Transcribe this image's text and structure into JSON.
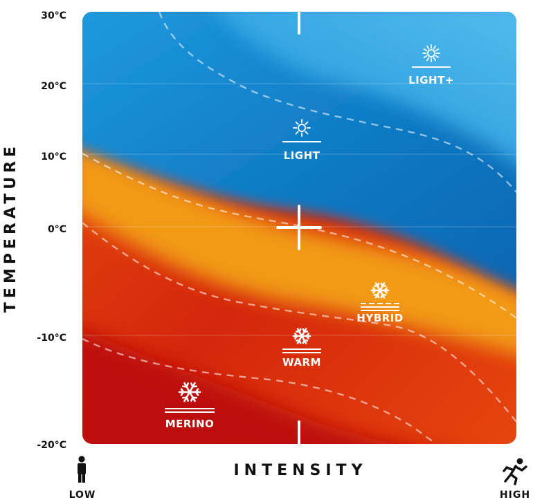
{
  "y_axis": {
    "title": "TEMPERATURE",
    "ticks": [
      {
        "label": "30°C",
        "value": 30
      },
      {
        "label": "20°C",
        "value": 20
      },
      {
        "label": "10°C",
        "value": 10
      },
      {
        "label": "0°C",
        "value": 0
      },
      {
        "label": "-10°C",
        "value": -10
      },
      {
        "label": "-20°C",
        "value": -20
      }
    ]
  },
  "x_axis": {
    "title": "INTENSITY",
    "low_label": "LOW",
    "high_label": "HIGH",
    "low_icon": "standing-person-icon",
    "high_icon": "running-person-icon"
  },
  "zones": [
    {
      "key": "merino",
      "label": "MERINO",
      "icon": "snowflake-icon"
    },
    {
      "key": "warm",
      "label": "WARM",
      "icon": "snowflake-icon"
    },
    {
      "key": "hybrid",
      "label": "HYBRID",
      "icon": "snowflake-icon"
    },
    {
      "key": "light",
      "label": "LIGHT",
      "icon": "sun-icon"
    },
    {
      "key": "light_plus",
      "label": "LIGHT+",
      "icon": "sun-icon"
    }
  ],
  "colors": {
    "cold_zone": "#c0100d",
    "cool_zone": "#e8400e",
    "mid_zone": "#f0a010",
    "warm_zone": "#1a86d0",
    "hot_zone": "#2cb5f0",
    "axis_text": "#111111"
  }
}
